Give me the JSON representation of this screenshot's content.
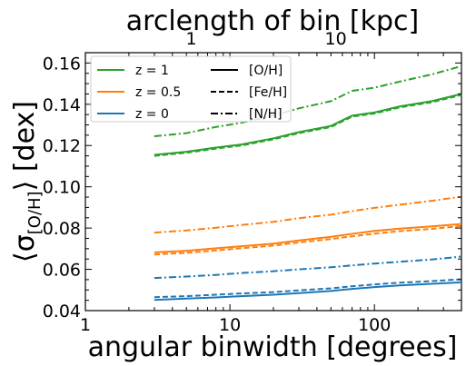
{
  "chart_data": {
    "type": "line",
    "title": "",
    "xlabel": "angular binwidth [degrees]",
    "ylabel": "⟨σ[O/H]⟩ [dex]",
    "ylabel_main": "⟨σ",
    "ylabel_sub": "[O/H]",
    "ylabel_tail": "⟩ [dex]",
    "top_xlabel": "arclength of bin [kpc]",
    "x_scale": "log",
    "xlim": [
      1,
      400
    ],
    "ylim": [
      0.04,
      0.165
    ],
    "x_ticks": [
      {
        "value": 1,
        "label": "1"
      },
      {
        "value": 10,
        "label": "10"
      },
      {
        "value": 100,
        "label": "100"
      }
    ],
    "y_ticks": [
      {
        "value": 0.04,
        "label": "0.04"
      },
      {
        "value": 0.06,
        "label": "0.06"
      },
      {
        "value": 0.08,
        "label": "0.08"
      },
      {
        "value": 0.1,
        "label": "0.10"
      },
      {
        "value": 0.12,
        "label": "0.12"
      },
      {
        "value": 0.14,
        "label": "0.14"
      },
      {
        "value": 0.16,
        "label": "0.16"
      }
    ],
    "top_ticks": [
      {
        "position": 5.4,
        "label": "1"
      },
      {
        "position": 54,
        "label": "10"
      }
    ],
    "grid": false,
    "legend_placement": "top-left",
    "legend_colors": [
      {
        "label": "z = 1",
        "color": "#2ca02c"
      },
      {
        "label": "z = 0.5",
        "color": "#ff7f0e"
      },
      {
        "label": "z = 0",
        "color": "#1f77b4"
      }
    ],
    "legend_styles": [
      {
        "label": "[O/H]",
        "dash": "solid"
      },
      {
        "label": "[Fe/H]",
        "dash": "dashed"
      },
      {
        "label": "[N/H]",
        "dash": "dashdot"
      }
    ],
    "x": [
      3,
      5,
      8,
      12,
      20,
      30,
      50,
      70,
      100,
      150,
      250,
      400
    ],
    "series": [
      {
        "redshift": "z = 1",
        "element": "[O/H]",
        "color": "#2ca02c",
        "dash": "solid",
        "values": [
          0.1155,
          0.117,
          0.119,
          0.1205,
          0.1235,
          0.1265,
          0.1295,
          0.1345,
          0.136,
          0.139,
          0.1415,
          0.145
        ]
      },
      {
        "redshift": "z = 1",
        "element": "[Fe/H]",
        "color": "#2ca02c",
        "dash": "dashed",
        "values": [
          0.115,
          0.1165,
          0.1185,
          0.12,
          0.123,
          0.126,
          0.129,
          0.134,
          0.1355,
          0.1385,
          0.141,
          0.1445
        ]
      },
      {
        "redshift": "z = 1",
        "element": "[N/H]",
        "color": "#2ca02c",
        "dash": "dashdot",
        "values": [
          0.1245,
          0.126,
          0.129,
          0.131,
          0.1345,
          0.138,
          0.1415,
          0.1465,
          0.148,
          0.151,
          0.1545,
          0.1585
        ]
      },
      {
        "redshift": "z = 0.5",
        "element": "[O/H]",
        "color": "#ff7f0e",
        "dash": "solid",
        "values": [
          0.0682,
          0.069,
          0.0702,
          0.0712,
          0.0725,
          0.074,
          0.0758,
          0.0772,
          0.0786,
          0.0797,
          0.0808,
          0.082
        ]
      },
      {
        "redshift": "z = 0.5",
        "element": "[Fe/H]",
        "color": "#ff7f0e",
        "dash": "dashed",
        "values": [
          0.0672,
          0.068,
          0.0692,
          0.0702,
          0.0715,
          0.073,
          0.0747,
          0.076,
          0.0773,
          0.0785,
          0.0796,
          0.081
        ]
      },
      {
        "redshift": "z = 0.5",
        "element": "[N/H]",
        "color": "#ff7f0e",
        "dash": "dashdot",
        "values": [
          0.0778,
          0.0788,
          0.0802,
          0.0815,
          0.083,
          0.0848,
          0.0865,
          0.0882,
          0.0898,
          0.0913,
          0.0932,
          0.0952
        ]
      },
      {
        "redshift": "z = 0",
        "element": "[O/H]",
        "color": "#1f77b4",
        "dash": "solid",
        "values": [
          0.0452,
          0.0458,
          0.0464,
          0.047,
          0.0477,
          0.0485,
          0.0495,
          0.0505,
          0.0514,
          0.0522,
          0.053,
          0.0537
        ]
      },
      {
        "redshift": "z = 0",
        "element": "[Fe/H]",
        "color": "#1f77b4",
        "dash": "dashed",
        "values": [
          0.0465,
          0.047,
          0.0477,
          0.0483,
          0.049,
          0.0498,
          0.0508,
          0.0518,
          0.0527,
          0.0535,
          0.0543,
          0.0552
        ]
      },
      {
        "redshift": "z = 0",
        "element": "[N/H]",
        "color": "#1f77b4",
        "dash": "dashdot",
        "values": [
          0.0558,
          0.0565,
          0.0573,
          0.0582,
          0.0591,
          0.06,
          0.061,
          0.0619,
          0.0628,
          0.0637,
          0.0648,
          0.0662
        ]
      }
    ]
  }
}
